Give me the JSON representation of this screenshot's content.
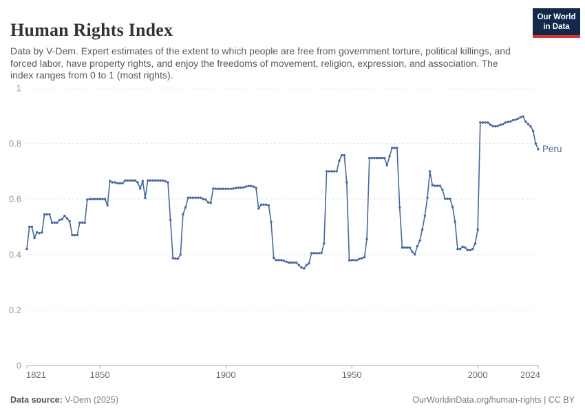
{
  "header": {
    "title": "Human Rights Index",
    "subtitle": "Data by V-Dem. Expert estimates of the extent to which people are free from government torture, political killings, and forced labor, have property rights, and enjoy the freedoms of movement, religion, expression, and association. The index ranges from 0 to 1 (most rights)."
  },
  "logo": {
    "line1": "Our World",
    "line2": "in Data",
    "bg_color": "#12294b",
    "stripe_color": "#d8352f"
  },
  "footer": {
    "source_label": "Data source:",
    "source_value": " V-Dem (2025)",
    "credit": "OurWorldinData.org/human-rights | CC BY"
  },
  "chart_data": {
    "type": "line",
    "title": "Human Rights Index",
    "entity": "Peru",
    "entity_label": "Peru",
    "line_color": "#4466a3",
    "grid": "horizontal-dashed",
    "legend_position": "end-of-line-label",
    "xlabel": "",
    "ylabel": "",
    "xlim": [
      1821,
      2024
    ],
    "ylim": [
      0,
      1
    ],
    "xticks": [
      1821,
      1850,
      1900,
      1950,
      2000,
      2024
    ],
    "yticks": [
      0,
      0.2,
      0.4,
      0.6,
      0.8,
      1
    ],
    "ytick_labels": [
      "0",
      "0.2",
      "0.4",
      "0.6",
      "0.8",
      "1"
    ],
    "x_frequency": "annual",
    "year_range": [
      1821,
      2024
    ],
    "values": [
      0.42,
      0.5,
      0.5,
      0.46,
      0.48,
      0.477,
      0.48,
      0.545,
      0.545,
      0.545,
      0.515,
      0.515,
      0.515,
      0.525,
      0.527,
      0.54,
      0.53,
      0.52,
      0.47,
      0.47,
      0.47,
      0.515,
      0.515,
      0.515,
      0.598,
      0.6,
      0.6,
      0.6,
      0.6,
      0.6,
      0.6,
      0.6,
      0.578,
      0.665,
      0.66,
      0.66,
      0.657,
      0.657,
      0.657,
      0.667,
      0.667,
      0.667,
      0.667,
      0.667,
      0.66,
      0.638,
      0.665,
      0.604,
      0.667,
      0.667,
      0.667,
      0.667,
      0.667,
      0.667,
      0.667,
      0.664,
      0.66,
      0.525,
      0.387,
      0.385,
      0.385,
      0.4,
      0.545,
      0.57,
      0.605,
      0.605,
      0.605,
      0.605,
      0.605,
      0.605,
      0.6,
      0.598,
      0.588,
      0.586,
      0.638,
      0.637,
      0.637,
      0.637,
      0.637,
      0.637,
      0.637,
      0.637,
      0.638,
      0.64,
      0.641,
      0.641,
      0.642,
      0.645,
      0.647,
      0.647,
      0.645,
      0.64,
      0.566,
      0.58,
      0.58,
      0.58,
      0.577,
      0.517,
      0.388,
      0.38,
      0.38,
      0.38,
      0.378,
      0.374,
      0.371,
      0.371,
      0.371,
      0.371,
      0.362,
      0.353,
      0.35,
      0.362,
      0.368,
      0.405,
      0.405,
      0.405,
      0.405,
      0.406,
      0.44,
      0.7,
      0.7,
      0.7,
      0.7,
      0.7,
      0.738,
      0.758,
      0.758,
      0.66,
      0.379,
      0.38,
      0.38,
      0.38,
      0.384,
      0.387,
      0.39,
      0.456,
      0.748,
      0.748,
      0.748,
      0.748,
      0.748,
      0.748,
      0.748,
      0.722,
      0.755,
      0.784,
      0.784,
      0.784,
      0.57,
      0.425,
      0.425,
      0.425,
      0.425,
      0.41,
      0.4,
      0.43,
      0.45,
      0.49,
      0.54,
      0.605,
      0.7,
      0.65,
      0.648,
      0.648,
      0.648,
      0.633,
      0.601,
      0.601,
      0.601,
      0.572,
      0.518,
      0.42,
      0.42,
      0.428,
      0.425,
      0.416,
      0.416,
      0.42,
      0.44,
      0.49,
      0.876,
      0.876,
      0.876,
      0.876,
      0.868,
      0.863,
      0.862,
      0.864,
      0.868,
      0.87,
      0.876,
      0.878,
      0.88,
      0.884,
      0.886,
      0.89,
      0.895,
      0.898,
      0.879,
      0.87,
      0.862,
      0.845,
      0.8,
      0.78
    ],
    "colors": {
      "grid": "#dedede",
      "axis": "#adadad",
      "tick": "#999999",
      "ytick_label": "#9a9a9a",
      "xtick_label": "#6b6b6b"
    }
  }
}
